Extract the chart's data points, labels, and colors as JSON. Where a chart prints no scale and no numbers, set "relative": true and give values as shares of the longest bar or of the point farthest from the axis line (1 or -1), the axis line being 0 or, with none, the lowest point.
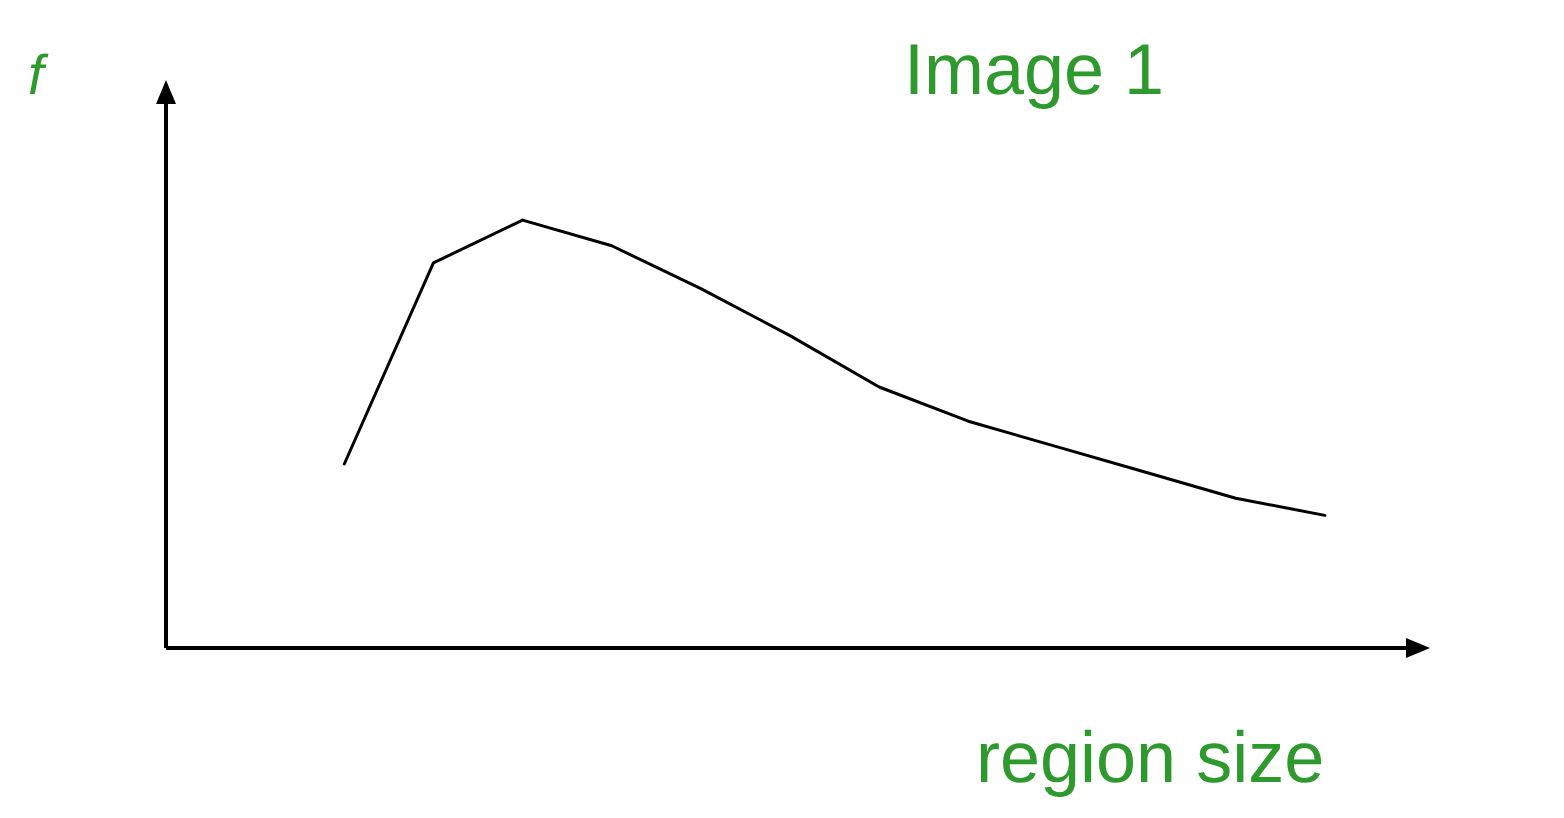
{
  "chart_data": {
    "type": "line",
    "title": "Image 1",
    "xlabel": "region size",
    "ylabel": "f",
    "relative": true,
    "categories": [
      null,
      null,
      null,
      null,
      null,
      null,
      null,
      null,
      null,
      null,
      null,
      null,
      null,
      null,
      null
    ],
    "series": [
      {
        "color": "#000000",
        "values": [
          null,
          null,
          0.43,
          0.9,
          1,
          0.94,
          0.84,
          0.73,
          0.61,
          0.53,
          0.47,
          0.41,
          0.35,
          0.31,
          null
        ]
      }
    ],
    "marker": "none",
    "grid": false
  }
}
